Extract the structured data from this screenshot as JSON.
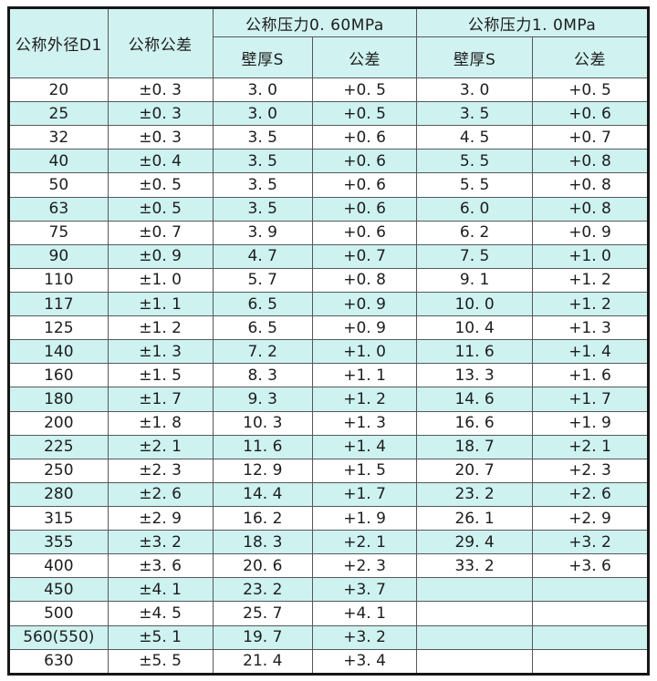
{
  "table": {
    "header": {
      "col_outer_diameter": "公称外径D1",
      "col_nominal_tolerance": "公称公差",
      "group_pressure_060": "公称压力0. 60MPa",
      "group_pressure_10": "公称压力1. 0MPa",
      "sub_wall_thickness": "壁厚S",
      "sub_tolerance": "公差"
    },
    "rows": [
      [
        "20",
        "±0. 3",
        "3. 0",
        "+0. 5",
        "3. 0",
        "+0. 5"
      ],
      [
        "25",
        "±0. 3",
        "3. 0",
        "+0. 5",
        "3. 5",
        "+0. 6"
      ],
      [
        "32",
        "±0. 3",
        "3. 5",
        "+0. 6",
        "4. 5",
        "+0. 7"
      ],
      [
        "40",
        "±0. 4",
        "3. 5",
        "+0. 6",
        "5. 5",
        "+0. 8"
      ],
      [
        "50",
        "±0. 5",
        "3. 5",
        "+0. 6",
        "5. 5",
        "+0. 8"
      ],
      [
        "63",
        "±0. 5",
        "3. 5",
        "+0. 6",
        "6. 0",
        "+0. 8"
      ],
      [
        "75",
        "±0. 7",
        "3. 9",
        "+0. 6",
        "6. 2",
        "+0. 9"
      ],
      [
        "90",
        "±0. 9",
        "4. 7",
        "+0. 7",
        "7. 5",
        "+1. 0"
      ],
      [
        "110",
        "±1. 0",
        "5. 7",
        "+0. 8",
        "9. 1",
        "+1. 2"
      ],
      [
        "117",
        "±1. 1",
        "6. 5",
        "+0. 9",
        "10. 0",
        "+1. 2"
      ],
      [
        "125",
        "±1. 2",
        "6. 5",
        "+0. 9",
        "10. 4",
        "+1. 3"
      ],
      [
        "140",
        "±1. 3",
        "7. 2",
        "+1. 0",
        "11. 6",
        "+1. 4"
      ],
      [
        "160",
        "±1. 5",
        "8. 3",
        "+1. 1",
        "13. 3",
        "+1. 6"
      ],
      [
        "180",
        "±1. 7",
        "9. 3",
        "+1. 2",
        "14. 6",
        "+1. 7"
      ],
      [
        "200",
        "±1. 8",
        "10. 3",
        "+1. 3",
        "16. 6",
        "+1. 9"
      ],
      [
        "225",
        "±2. 1",
        "11. 6",
        "+1. 4",
        "18. 7",
        "+2. 1"
      ],
      [
        "250",
        "±2. 3",
        "12. 9",
        "+1. 5",
        "20. 7",
        "+2. 3"
      ],
      [
        "280",
        "±2. 6",
        "14. 4",
        "+1. 7",
        "23. 2",
        "+2. 6"
      ],
      [
        "315",
        "±2. 9",
        "16. 2",
        "+1. 9",
        "26. 1",
        "+2. 9"
      ],
      [
        "355",
        "±3. 2",
        "18. 3",
        "+2. 1",
        "29. 4",
        "+3. 2"
      ],
      [
        "400",
        "±3. 6",
        "20. 6",
        "+2. 3",
        "33. 2",
        "+3. 6"
      ],
      [
        "450",
        "±4. 1",
        "23. 2",
        "+3. 7",
        "",
        ""
      ],
      [
        "500",
        "±4. 5",
        "25. 7",
        "+4. 1",
        "",
        ""
      ],
      [
        "560(550)",
        "±5. 1",
        "19. 7",
        "+3. 2",
        "",
        ""
      ],
      [
        "630",
        "±5. 5",
        "21. 4",
        "+3. 4",
        "",
        ""
      ]
    ],
    "colors": {
      "stripe": "#cdf2f0",
      "header_bg": "#d0f2f0",
      "grid_line": "#57585a",
      "outer_border": "#161616",
      "text": "#1d1d1d",
      "page_bg": "#ffffff"
    }
  }
}
